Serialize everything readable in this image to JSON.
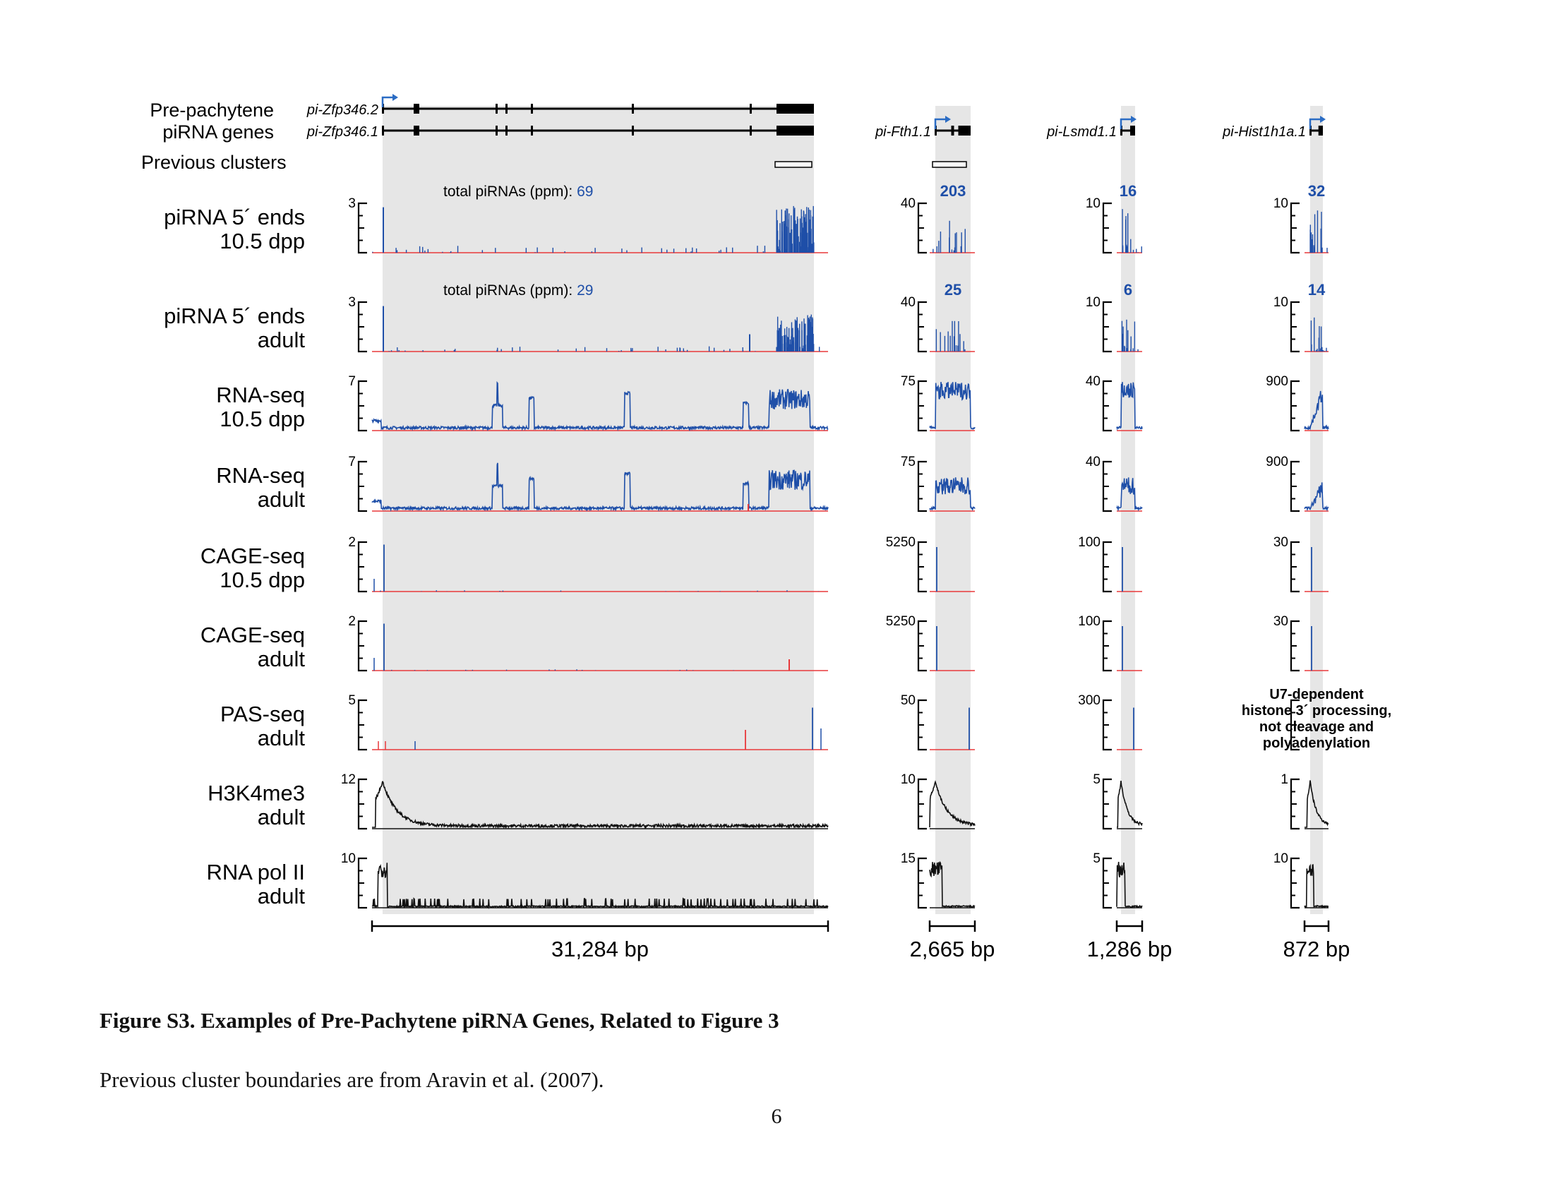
{
  "header": {
    "gene_label_line1": "Pre-pachytene",
    "gene_label_line2": "piRNA genes",
    "clusters_label": "Previous clusters",
    "total_piRNAs_prefix": "total piRNAs (ppm): "
  },
  "colors": {
    "sense": "#1f4fa8",
    "antisense": "#e8383a",
    "signal": "#111111",
    "shade": "#e6e6e6",
    "arrow": "#2b6cc4"
  },
  "tracks": [
    {
      "name": "piRNA 5´ ends",
      "sub": "10.5 dpp",
      "type": "pirna"
    },
    {
      "name": "piRNA 5´ ends",
      "sub": "adult",
      "type": "pirna"
    },
    {
      "name": "RNA-seq",
      "sub": "10.5 dpp",
      "type": "rna"
    },
    {
      "name": "RNA-seq",
      "sub": "adult",
      "type": "rna"
    },
    {
      "name": "CAGE-seq",
      "sub": "10.5 dpp",
      "type": "cage"
    },
    {
      "name": "CAGE-seq",
      "sub": "adult",
      "type": "cage"
    },
    {
      "name": "PAS-seq",
      "sub": "adult",
      "type": "pas"
    },
    {
      "name": "H3K4me3",
      "sub": "adult",
      "type": "h3k4"
    },
    {
      "name": "RNA pol II",
      "sub": "adult",
      "type": "pol2"
    }
  ],
  "panels": [
    {
      "genes": [
        "pi-Zfp346.2",
        "pi-Zfp346.1"
      ],
      "scales": [
        "3",
        "3",
        "7",
        "7",
        "2",
        "2",
        "5",
        "12",
        "10"
      ],
      "totals": [
        "69",
        "29"
      ],
      "size": "31,284 bp"
    },
    {
      "genes": [
        "pi-Fth1.1"
      ],
      "scales": [
        "40",
        "40",
        "75",
        "75",
        "5250",
        "5250",
        "50",
        "10",
        "15"
      ],
      "totals": [
        "203",
        "25"
      ],
      "size": "2,665 bp"
    },
    {
      "genes": [
        "pi-Lsmd1.1"
      ],
      "scales": [
        "10",
        "10",
        "40",
        "40",
        "100",
        "100",
        "300",
        "5",
        "5"
      ],
      "totals": [
        "16",
        "6"
      ],
      "size": "1,286 bp"
    },
    {
      "genes": [
        "pi-Hist1h1a.1"
      ],
      "scales": [
        "10",
        "10",
        "900",
        "900",
        "30",
        "30",
        "",
        "1",
        "10"
      ],
      "totals": [
        "32",
        "14"
      ],
      "size": "872 bp",
      "note": [
        "U7-dependent",
        "histone 3´ processing,",
        "not cleavage and",
        "polyadenylation"
      ]
    }
  ],
  "caption": {
    "title": "Figure S3. Examples of Pre-Pachytene piRNA Genes, Related to Figure 3",
    "body": "Previous cluster boundaries are from Aravin et al. (2007).",
    "page_number": "6"
  }
}
